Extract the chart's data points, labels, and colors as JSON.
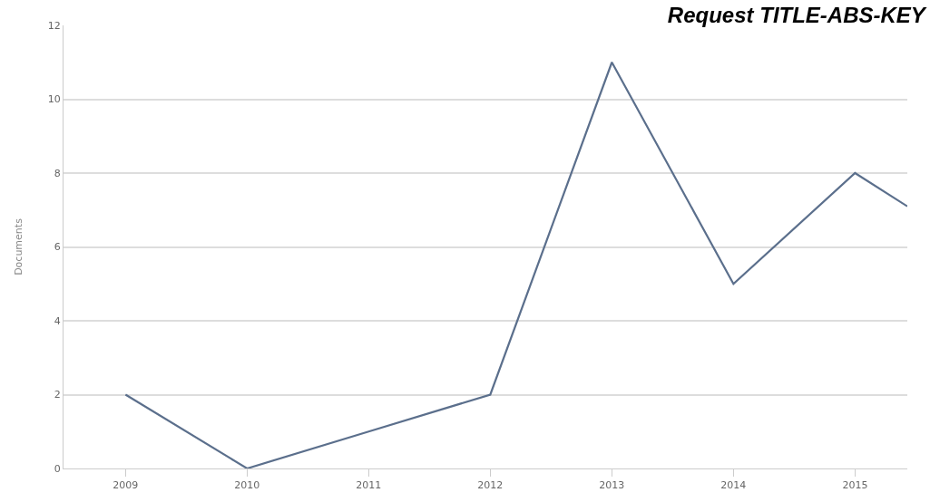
{
  "chart_data": {
    "type": "line",
    "title": "Request TITLE-ABS-KEY",
    "ylabel": "Documents",
    "x": [
      2009,
      2010,
      2011,
      2012,
      2013,
      2014,
      2015,
      2015.43
    ],
    "series": [
      {
        "color": "#5b6f8c",
        "values": [
          2,
          0,
          1,
          2,
          11,
          5,
          8,
          7.1
        ]
      }
    ],
    "xlim": [
      2008.49,
      2015.43
    ],
    "xticks": [
      2009,
      2010,
      2011,
      2012,
      2013,
      2014,
      2015
    ],
    "ylim": [
      0,
      12
    ],
    "yticks": [
      0,
      2,
      4,
      6,
      8,
      10,
      12
    ],
    "grid": "y",
    "legend": false,
    "marker": "none",
    "line_style": "solid"
  }
}
